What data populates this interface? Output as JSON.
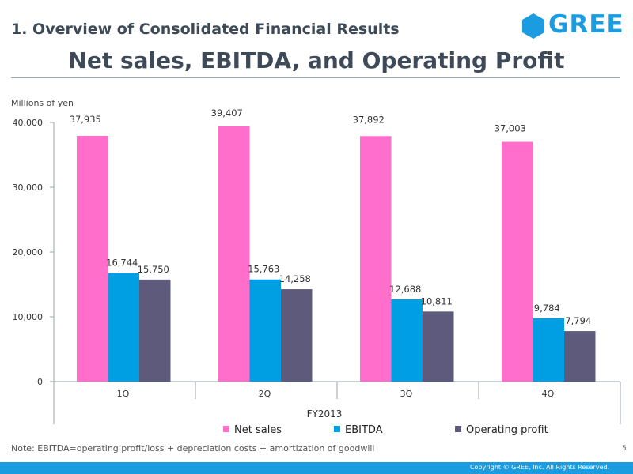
{
  "header": {
    "section_title": "1. Overview of Consolidated Financial Results",
    "main_title": "Net sales, EBITDA, and Operating Profit",
    "logo_text": "GREE"
  },
  "chart_data": {
    "type": "bar",
    "unit_label": "Millions of yen",
    "xlabel": "FY2013",
    "categories": [
      "1Q",
      "2Q",
      "3Q",
      "4Q"
    ],
    "ylim": [
      0,
      40000
    ],
    "yticks": [
      0,
      10000,
      20000,
      30000,
      40000
    ],
    "ytick_labels": [
      "0",
      "10,000",
      "20,000",
      "30,000",
      "40,000"
    ],
    "series": [
      {
        "name": "Net sales",
        "color": "#ff6ecb",
        "values": [
          37935,
          39407,
          37892,
          37003
        ],
        "labels": [
          "37,935",
          "39,407",
          "37,892",
          "37,003"
        ]
      },
      {
        "name": "EBITDA",
        "color": "#009fe3",
        "values": [
          16744,
          15763,
          12688,
          9784
        ],
        "labels": [
          "16,744",
          "15,763",
          "12,688",
          "9,784"
        ]
      },
      {
        "name": "Operating profit",
        "color": "#5d5a7c",
        "values": [
          15750,
          14258,
          10811,
          7794
        ],
        "labels": [
          "15,750",
          "14,258",
          "10,811",
          "7,794"
        ]
      }
    ],
    "legend_position": "bottom",
    "grid": false
  },
  "footer": {
    "note": "Note: EBITDA=operating profit/loss + depreciation costs + amortization of goodwill",
    "page_number": "5",
    "copyright": "Copyright © GREE, Inc. All Rights Reserved."
  },
  "colors": {
    "title_text": "#3e4a57",
    "brand_blue": "#1b9be0"
  }
}
